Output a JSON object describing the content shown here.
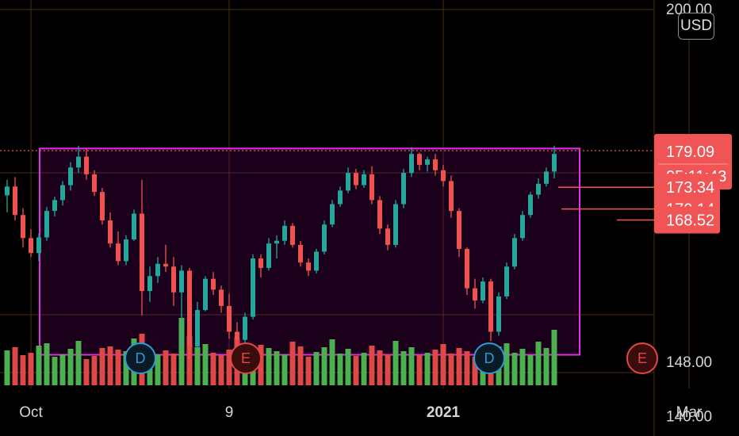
{
  "currency_button": {
    "label": "USD"
  },
  "chart_data": {
    "type": "candlestick",
    "title": "",
    "y_axis": {
      "ticks": [
        {
          "value": 200,
          "label": "200.00"
        },
        {
          "value": 148,
          "label": "148.00"
        },
        {
          "value": 140,
          "label": "140.00"
        }
      ]
    },
    "x_axis": {
      "ticks": [
        {
          "label": "Oct",
          "index": 3,
          "bold": false
        },
        {
          "label": "9",
          "index": 28,
          "bold": false
        },
        {
          "label": "2021",
          "index": 55,
          "bold": true
        },
        {
          "label": "Mar",
          "index": 86,
          "bold": false
        }
      ]
    },
    "price_labels": [
      {
        "value": 179.09,
        "label": "179.09",
        "sub_label": "05:11:43",
        "kind": "last"
      },
      {
        "value": 173.34,
        "label": "173.34",
        "kind": "level"
      },
      {
        "value": 170.14,
        "label": "170.14",
        "kind": "level"
      },
      {
        "value": 168.52,
        "label": "168.52",
        "kind": "level"
      }
    ],
    "range_box": {
      "low": 149.0,
      "high": 179.4
    },
    "events": [
      {
        "label": "D",
        "index": 17,
        "kind": "dividend"
      },
      {
        "label": "E",
        "index": 31,
        "kind": "earnings"
      },
      {
        "label": "D",
        "index": 61,
        "kind": "dividend"
      },
      {
        "label": "E",
        "index": 81,
        "kind": "earnings"
      }
    ],
    "candles": [
      [
        172.5,
        174.8,
        170.0,
        173.8
      ],
      [
        173.8,
        175.2,
        168.8,
        169.6
      ],
      [
        169.6,
        170.6,
        164.8,
        166.2
      ],
      [
        166.2,
        167.5,
        163.4,
        164.0
      ],
      [
        164.0,
        166.9,
        162.8,
        166.3
      ],
      [
        166.3,
        170.8,
        165.8,
        170.2
      ],
      [
        170.2,
        172.3,
        169.4,
        171.8
      ],
      [
        171.8,
        174.6,
        171.0,
        174.0
      ],
      [
        174.0,
        177.4,
        173.2,
        176.6
      ],
      [
        176.6,
        179.8,
        175.8,
        178.2
      ],
      [
        178.2,
        179.4,
        174.8,
        175.6
      ],
      [
        175.6,
        176.2,
        172.4,
        173.0
      ],
      [
        173.0,
        173.6,
        168.2,
        168.8
      ],
      [
        168.8,
        170.0,
        164.8,
        165.4
      ],
      [
        165.4,
        167.2,
        162.2,
        162.8
      ],
      [
        162.8,
        166.6,
        162.2,
        166.0
      ],
      [
        166.0,
        170.4,
        165.8,
        169.8
      ],
      [
        169.8,
        174.8,
        154.8,
        158.4
      ],
      [
        158.4,
        162.0,
        156.8,
        160.6
      ],
      [
        160.6,
        163.4,
        159.6,
        162.4
      ],
      [
        162.4,
        165.2,
        161.2,
        162.0
      ],
      [
        162.0,
        163.4,
        156.2,
        158.2
      ],
      [
        158.2,
        162.2,
        150.0,
        161.4
      ],
      [
        161.4,
        161.8,
        148.4,
        150.2
      ],
      [
        150.2,
        156.8,
        149.8,
        155.6
      ],
      [
        155.6,
        160.6,
        155.4,
        160.2
      ],
      [
        160.2,
        161.2,
        157.8,
        158.6
      ],
      [
        158.6,
        159.2,
        155.2,
        156.2
      ],
      [
        156.2,
        158.0,
        151.4,
        152.4
      ],
      [
        152.4,
        153.8,
        149.6,
        151.2
      ],
      [
        151.2,
        155.2,
        150.8,
        154.6
      ],
      [
        154.6,
        163.8,
        154.2,
        163.2
      ],
      [
        163.2,
        163.8,
        160.4,
        161.8
      ],
      [
        161.8,
        166.2,
        161.4,
        165.4
      ],
      [
        165.4,
        166.6,
        163.2,
        165.8
      ],
      [
        165.8,
        168.8,
        165.2,
        168.0
      ],
      [
        168.0,
        168.4,
        164.8,
        165.2
      ],
      [
        165.2,
        165.8,
        162.0,
        162.6
      ],
      [
        162.6,
        163.2,
        160.6,
        161.4
      ],
      [
        161.4,
        164.6,
        161.0,
        164.2
      ],
      [
        164.2,
        168.8,
        163.8,
        168.2
      ],
      [
        168.2,
        171.8,
        167.8,
        171.2
      ],
      [
        171.2,
        173.8,
        170.8,
        173.2
      ],
      [
        173.2,
        176.6,
        172.8,
        175.8
      ],
      [
        175.8,
        176.4,
        173.4,
        174.0
      ],
      [
        174.0,
        176.2,
        173.6,
        175.6
      ],
      [
        175.6,
        176.8,
        171.2,
        171.8
      ],
      [
        171.8,
        172.4,
        166.8,
        167.6
      ],
      [
        167.6,
        168.2,
        164.4,
        165.2
      ],
      [
        165.2,
        171.8,
        164.8,
        171.2
      ],
      [
        171.2,
        176.4,
        170.6,
        175.8
      ],
      [
        175.8,
        179.6,
        175.2,
        178.6
      ],
      [
        178.6,
        178.8,
        176.2,
        177.0
      ],
      [
        177.0,
        178.2,
        176.0,
        177.8
      ],
      [
        177.8,
        178.6,
        175.4,
        176.2
      ],
      [
        176.2,
        177.0,
        173.8,
        174.6
      ],
      [
        174.6,
        175.4,
        169.2,
        170.2
      ],
      [
        170.2,
        170.6,
        163.4,
        164.6
      ],
      [
        164.6,
        164.8,
        157.8,
        158.8
      ],
      [
        158.8,
        160.2,
        155.8,
        157.0
      ],
      [
        157.0,
        160.4,
        156.6,
        159.8
      ],
      [
        159.8,
        160.2,
        151.0,
        152.4
      ],
      [
        152.4,
        158.2,
        151.8,
        157.6
      ],
      [
        157.6,
        162.6,
        157.2,
        162.0
      ],
      [
        162.0,
        166.8,
        161.6,
        166.2
      ],
      [
        166.2,
        170.2,
        165.8,
        169.6
      ],
      [
        169.6,
        173.0,
        169.2,
        172.6
      ],
      [
        172.6,
        175.0,
        172.0,
        174.2
      ],
      [
        174.2,
        176.6,
        173.8,
        176.0
      ],
      [
        176.0,
        179.8,
        175.0,
        178.6
      ]
    ],
    "volume": [
      44,
      48,
      38,
      41,
      50,
      53,
      36,
      39,
      46,
      56,
      33,
      37,
      47,
      49,
      45,
      43,
      59,
      65,
      35,
      39,
      44,
      40,
      85,
      62,
      48,
      52,
      41,
      38,
      45,
      60,
      37,
      44,
      51,
      47,
      43,
      39,
      55,
      49,
      36,
      42,
      48,
      58,
      40,
      46,
      37,
      41,
      50,
      44,
      39,
      56,
      43,
      48,
      38,
      41,
      45,
      52,
      40,
      47,
      43,
      36,
      44,
      39,
      49,
      53,
      41,
      46,
      38,
      55,
      47,
      70
    ],
    "volume_up_color": "#4caf50",
    "volume_down_color": "#e04848",
    "up_color": "#26a69a",
    "down_color": "#ef5350",
    "box_color": "#e62de6",
    "badge_color": "#f05454"
  }
}
